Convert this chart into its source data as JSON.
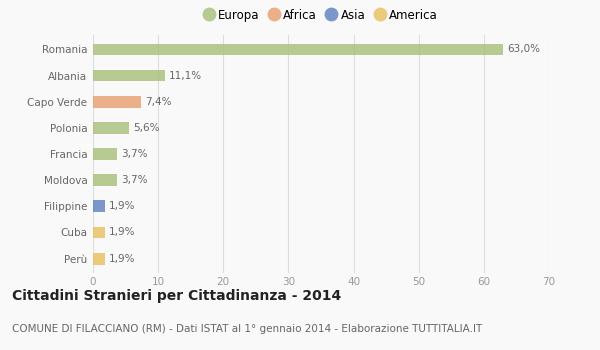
{
  "countries": [
    "Romania",
    "Albania",
    "Capo Verde",
    "Polonia",
    "Francia",
    "Moldova",
    "Filippine",
    "Cuba",
    "Perù"
  ],
  "values": [
    63.0,
    11.1,
    7.4,
    5.6,
    3.7,
    3.7,
    1.9,
    1.9,
    1.9
  ],
  "labels": [
    "63,0%",
    "11,1%",
    "7,4%",
    "5,6%",
    "3,7%",
    "3,7%",
    "1,9%",
    "1,9%",
    "1,9%"
  ],
  "colors": [
    "#a8c07a",
    "#a8c07a",
    "#e8a070",
    "#a8c07a",
    "#a8c07a",
    "#a8c07a",
    "#6080c0",
    "#e8c060",
    "#e8c060"
  ],
  "legend": [
    {
      "label": "Europa",
      "color": "#a8c07a"
    },
    {
      "label": "Africa",
      "color": "#e8a070"
    },
    {
      "label": "Asia",
      "color": "#6080c0"
    },
    {
      "label": "America",
      "color": "#e8c060"
    }
  ],
  "title": "Cittadini Stranieri per Cittadinanza - 2014",
  "subtitle": "COMUNE DI FILACCIANO (RM) - Dati ISTAT al 1° gennaio 2014 - Elaborazione TUTTITALIA.IT",
  "xlim": [
    0,
    70
  ],
  "xticks": [
    0,
    10,
    20,
    30,
    40,
    50,
    60,
    70
  ],
  "background_color": "#f9f9f9",
  "grid_color": "#dddddd",
  "bar_height": 0.45,
  "title_fontsize": 10,
  "subtitle_fontsize": 7.5,
  "label_fontsize": 7.5,
  "tick_fontsize": 7.5,
  "legend_fontsize": 8.5
}
